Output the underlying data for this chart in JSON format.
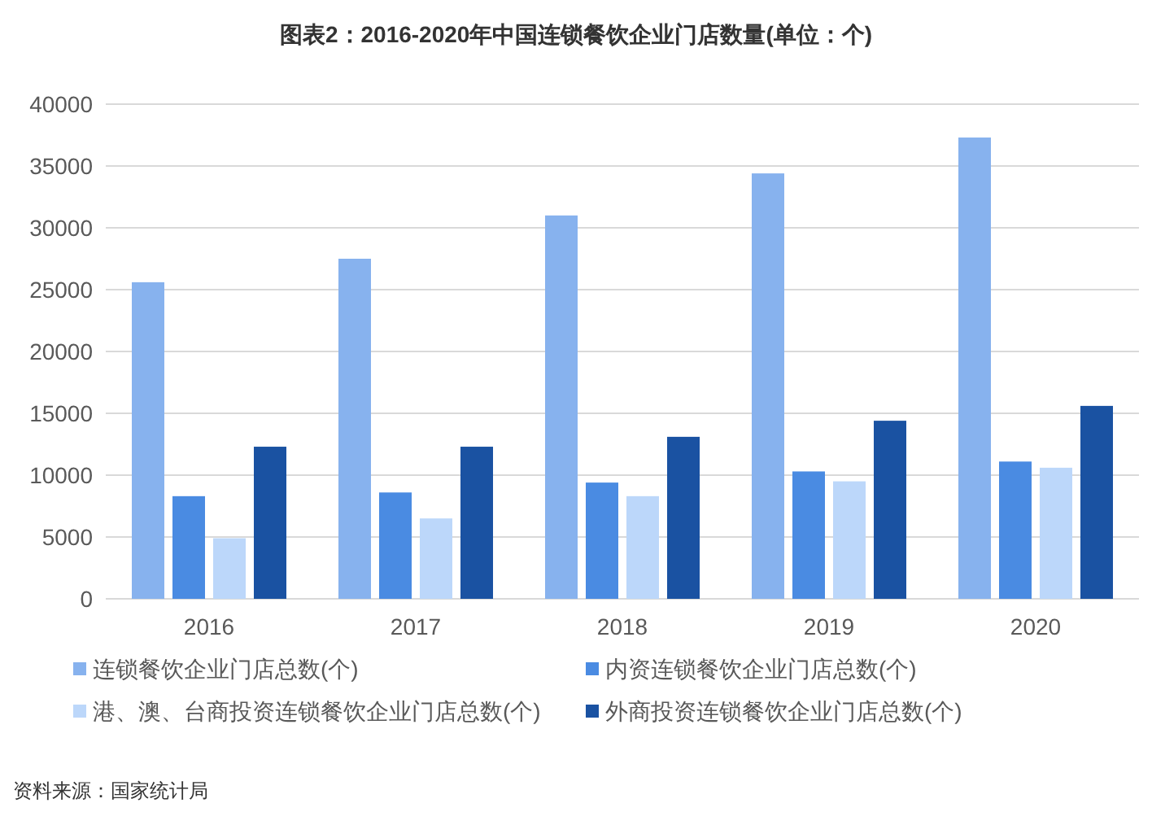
{
  "chart_data": {
    "type": "bar",
    "title": "图表2：2016-2020年中国连锁餐饮企业门店数量(单位：个)",
    "categories": [
      "2016",
      "2017",
      "2018",
      "2019",
      "2020"
    ],
    "series": [
      {
        "name": "连锁餐饮企业门店总数(个)",
        "color": "#87b2ee",
        "values": [
          25600,
          27500,
          31000,
          34400,
          37300
        ]
      },
      {
        "name": "内资连锁餐饮企业门店总数(个)",
        "color": "#4a8be2",
        "values": [
          8300,
          8600,
          9400,
          10300,
          11100
        ]
      },
      {
        "name": "港、澳、台商投资连锁餐饮企业门店总数(个)",
        "color": "#bcd7fa",
        "values": [
          4900,
          6500,
          8300,
          9500,
          10600
        ]
      },
      {
        "name": "外商投资连锁餐饮企业门店总数(个)",
        "color": "#1a52a2",
        "values": [
          12300,
          12300,
          13100,
          14400,
          15600
        ]
      }
    ],
    "ylim": [
      0,
      40000
    ],
    "yticks": [
      0,
      5000,
      10000,
      15000,
      20000,
      25000,
      30000,
      35000,
      40000
    ],
    "grid": "y",
    "legend": "bottom",
    "annotations": [
      "资料来源：国家统计局"
    ]
  }
}
